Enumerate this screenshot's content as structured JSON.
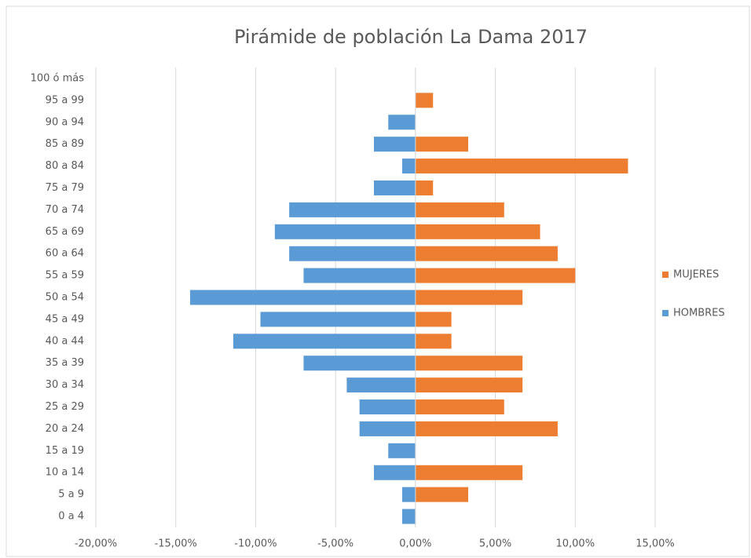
{
  "chart_data": {
    "type": "bar",
    "orientation": "horizontal",
    "title": "Pirámide de población La Dama 2017",
    "categories": [
      "0 a 4",
      "5 a 9",
      "10 a 14",
      "15 a 19",
      "20 a 24",
      "25 a 29",
      "30 a 34",
      "35 a 39",
      "40 a 44",
      "45 a 49",
      "50 a 54",
      "55 a 59",
      "60 a 64",
      "65 a 69",
      "70 a 74",
      "75 a 79",
      "80 a 84",
      "85 a 89",
      "90 a 94",
      "95 a 99",
      "100 ó más"
    ],
    "series": [
      {
        "name": "MUJERES",
        "color": "#ed7d31",
        "values": [
          0,
          3.3,
          6.7,
          0,
          8.9,
          5.55,
          6.7,
          6.7,
          2.25,
          2.25,
          6.7,
          10.0,
          8.9,
          7.8,
          5.55,
          1.1,
          13.3,
          3.3,
          0,
          1.1,
          0
        ]
      },
      {
        "name": "HOMBRES",
        "color": "#5b9bd5",
        "values": [
          -0.83,
          -0.83,
          -2.6,
          -1.7,
          -3.5,
          -3.5,
          -4.3,
          -7.0,
          -11.4,
          -9.7,
          -14.1,
          -7.0,
          -7.9,
          -8.8,
          -7.9,
          -2.6,
          -0.83,
          -2.6,
          -1.7,
          0,
          0
        ]
      }
    ],
    "xlim": [
      -20,
      15
    ],
    "xticks": [
      {
        "value": -20,
        "label": "-20,00%"
      },
      {
        "value": -15,
        "label": "-15,00%"
      },
      {
        "value": -10,
        "label": "-10,00%"
      },
      {
        "value": -5,
        "label": "-5,00%"
      },
      {
        "value": 0,
        "label": "0,00%"
      },
      {
        "value": 5,
        "label": "5,00%"
      },
      {
        "value": 10,
        "label": "10,00%"
      },
      {
        "value": 15,
        "label": "15,00%"
      }
    ],
    "grid": true,
    "legend": "right"
  }
}
